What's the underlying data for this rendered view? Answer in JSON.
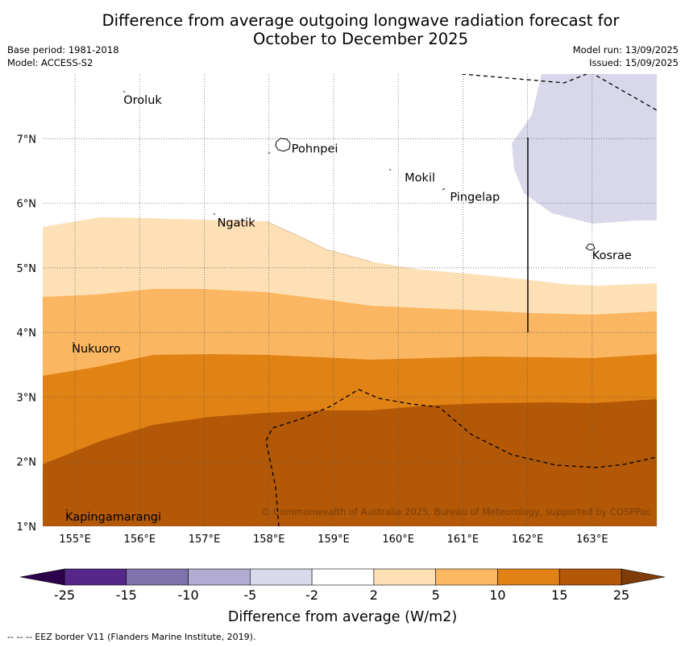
{
  "title_line1": "Difference from average outgoing longwave radiation forecast for",
  "title_line2": "October to December 2025",
  "base_period": "Base period: 1981-2018",
  "model": "Model: ACCESS-S2",
  "model_run": "Model run: 13/09/2025",
  "issued": "Issued: 15/09/2025",
  "map": {
    "lon_range": [
      154.5,
      164.0
    ],
    "lat_range": [
      1.0,
      8.0
    ],
    "lon_ticks": [
      "155°E",
      "156°E",
      "157°E",
      "158°E",
      "159°E",
      "160°E",
      "161°E",
      "162°E",
      "163°E"
    ],
    "lat_ticks": [
      "1°N",
      "2°N",
      "3°N",
      "4°N",
      "5°N",
      "6°N",
      "7°N"
    ],
    "places": [
      {
        "name": "Oroluk",
        "lon": 155.75,
        "lat": 7.6
      },
      {
        "name": "Pohnpei",
        "lon": 158.35,
        "lat": 6.85
      },
      {
        "name": "Mokil",
        "lon": 160.1,
        "lat": 6.4
      },
      {
        "name": "Pingelap",
        "lon": 160.8,
        "lat": 6.1
      },
      {
        "name": "Ngatik",
        "lon": 157.2,
        "lat": 5.7
      },
      {
        "name": "Kosrae",
        "lon": 163.0,
        "lat": 5.2
      },
      {
        "name": "Nukuoro",
        "lon": 154.95,
        "lat": 3.75
      },
      {
        "name": "Kapingamarangi",
        "lon": 154.85,
        "lat": 1.15
      }
    ],
    "copyright": "© Commonwealth of Australia 2025, Bureau of Meteorology, supported by COSPPac",
    "colors": {
      "cat_minus5_minus2": "#d8d8ea",
      "cat_2_5": "#fde0b6",
      "cat_5_10": "#fbb661",
      "cat_10_15": "#e08214",
      "cat_15_25": "#b35806"
    }
  },
  "colorbar": {
    "label": "Difference from average (W/m2)",
    "ticks": [
      "-25",
      "-15",
      "-10",
      "-5",
      "-2",
      "2",
      "5",
      "10",
      "15",
      "25"
    ],
    "colors": [
      "#542788",
      "#8073ac",
      "#b2abd2",
      "#d8daeb",
      "#ffffff",
      "#fee0b6",
      "#fdb863",
      "#e08214",
      "#b35806"
    ],
    "low_extend_color": "#2d004b",
    "high_extend_color": "#7f3b08"
  },
  "footer": "-- -- -- EEZ border V11 (Flanders Marine Institute, 2019)."
}
